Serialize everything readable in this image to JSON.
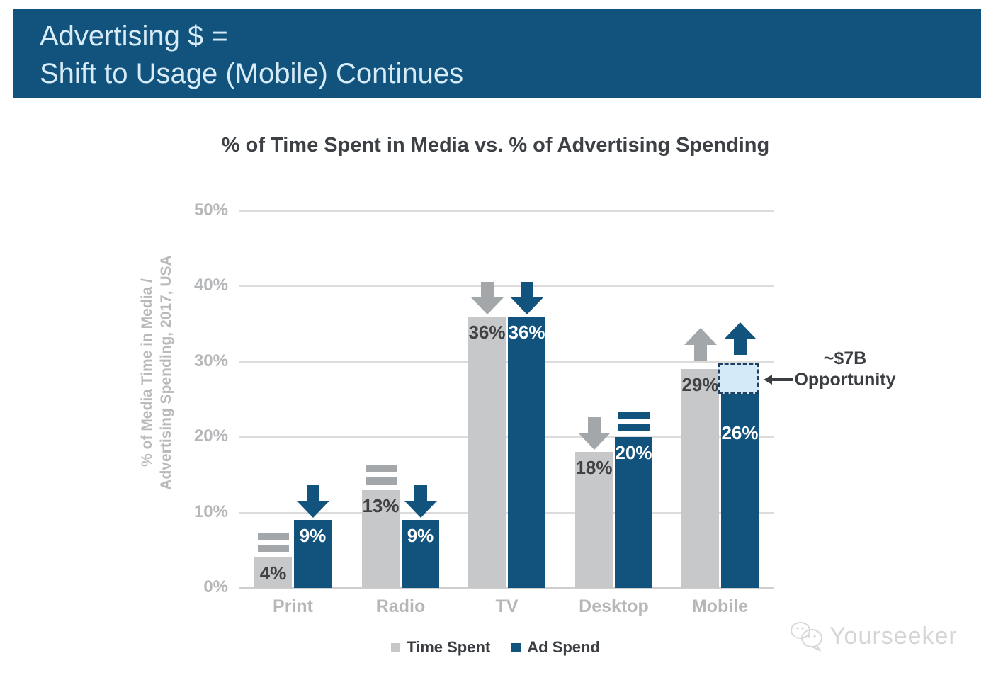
{
  "banner": {
    "line1": "Advertising $ =",
    "line2": "Shift to Usage (Mobile) Continues"
  },
  "chart_data": {
    "type": "bar",
    "title": "% of Time Spent in Media vs. % of Advertising Spending",
    "ylabel": "% of Media Time in Media / Advertising Spending, 2017, USA",
    "ylabel_line1": "% of Media Time in Media /",
    "ylabel_line2": "Advertising Spending, 2017, USA",
    "categories": [
      "Print",
      "Radio",
      "TV",
      "Desktop",
      "Mobile"
    ],
    "series": [
      {
        "name": "Time Spent",
        "color": "#C7C8C9",
        "marker_color": "#A4A7A9",
        "label_color": "#3F4245",
        "values": [
          4,
          13,
          36,
          18,
          29
        ],
        "trend_markers": [
          "flat",
          "flat",
          "down",
          "down",
          "up"
        ]
      },
      {
        "name": "Ad Spend",
        "color": "#11537D",
        "marker_color": "#11537D",
        "label_color": "#FFFFFF",
        "values": [
          9,
          9,
          36,
          20,
          26
        ],
        "trend_markers": [
          "down",
          "down",
          "down",
          "flat",
          "up"
        ]
      }
    ],
    "ylim": [
      0,
      50
    ],
    "y_tick_values": [
      50,
      40,
      30,
      20,
      10,
      0
    ],
    "y_tick_suffix": "%",
    "grid": true,
    "legend_position": "bottom",
    "annotation": {
      "line1": "~$7B",
      "line2": "Opportunity",
      "target_category": "Mobile",
      "target_series": "Ad Spend",
      "gap_from": 26,
      "gap_to": 29.8,
      "box_fill": "#D5EAF8",
      "box_border": "#1F4060"
    }
  },
  "watermark": {
    "text": "Yourseeker"
  }
}
